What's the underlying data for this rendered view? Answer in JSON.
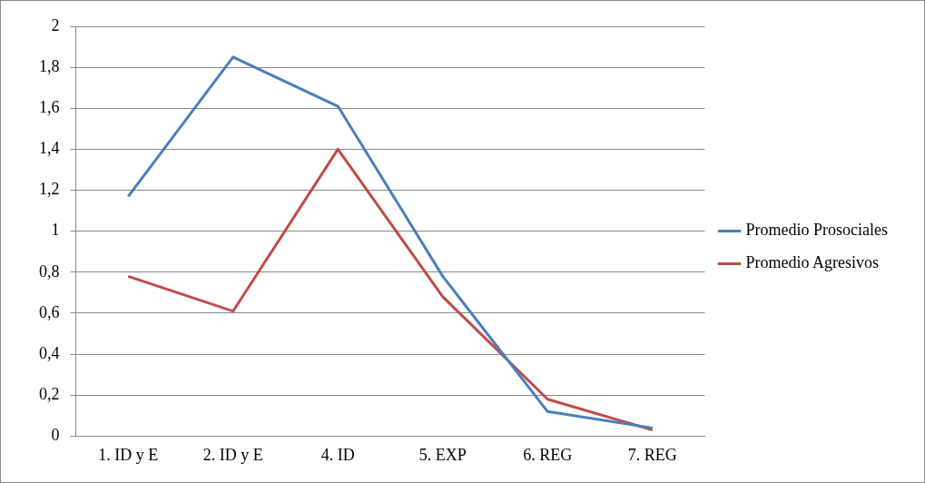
{
  "chart_data": {
    "type": "line",
    "categories": [
      "1. ID y E",
      "2. ID y E",
      "4. ID",
      "5. EXP",
      "6. REG",
      "7. REG"
    ],
    "series": [
      {
        "name": "Promedio Prosociales",
        "color": "#4a7ebb",
        "values": [
          1.17,
          1.85,
          1.61,
          0.78,
          0.12,
          0.04
        ]
      },
      {
        "name": "Promedio Agresivos",
        "color": "#be4b48",
        "values": [
          0.78,
          0.61,
          1.4,
          0.68,
          0.18,
          0.03
        ]
      }
    ],
    "ylim": [
      0,
      2
    ],
    "yticks": [
      0,
      {
        "value": 0.2,
        "label": "0,2"
      },
      {
        "value": 0.4,
        "label": "0,4"
      },
      {
        "value": 0.6,
        "label": "0,6"
      },
      {
        "value": 0.8,
        "label": "0,8"
      },
      1,
      {
        "value": 1.2,
        "label": "1,2"
      },
      {
        "value": 1.4,
        "label": "1,4"
      },
      {
        "value": 1.6,
        "label": "1,6"
      },
      {
        "value": 1.8,
        "label": "1,8"
      },
      2
    ],
    "grid": "y",
    "legend": "right",
    "marker": "none",
    "line_style": "solid"
  }
}
